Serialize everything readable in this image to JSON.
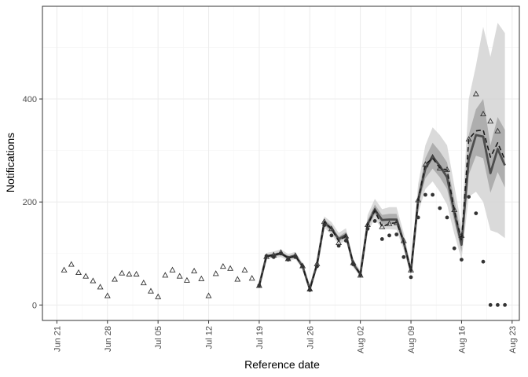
{
  "chart_data": {
    "type": "line",
    "title": "",
    "xlabel": "Reference date",
    "ylabel": "Notifications",
    "x_ticks": [
      "Jun 21",
      "Jun 28",
      "Jul 05",
      "Jul 12",
      "Jul 19",
      "Jul 26",
      "Aug 02",
      "Aug 09",
      "Aug 16",
      "Aug 23"
    ],
    "y_ticks": [
      "0",
      "200",
      "400"
    ],
    "xlim": [
      "2020-06-19",
      "2020-08-24"
    ],
    "ylim": [
      -30,
      580
    ],
    "grid": true,
    "theme": "black-and-white",
    "colors": {
      "background": "#ffffff",
      "panel_border": "#333333",
      "grid_major": "#ebebeb",
      "grid_minor": "#f5f5f5",
      "ribbon_outer": "#d3d3d3",
      "ribbon_inner": "#a6a6a6",
      "median_line": "#4d4d4d",
      "dashed_line": "#1a1a1a",
      "points": "#333333"
    },
    "series": [
      {
        "kind": "triangles",
        "dates": [
          "2020-06-22",
          "2020-06-23",
          "2020-06-24",
          "2020-06-25",
          "2020-06-26",
          "2020-06-27",
          "2020-06-28",
          "2020-06-29",
          "2020-06-30",
          "2020-07-01",
          "2020-07-02",
          "2020-07-03",
          "2020-07-04",
          "2020-07-05",
          "2020-07-06",
          "2020-07-07",
          "2020-07-08",
          "2020-07-09",
          "2020-07-10",
          "2020-07-11",
          "2020-07-12",
          "2020-07-13",
          "2020-07-14",
          "2020-07-15",
          "2020-07-16",
          "2020-07-17",
          "2020-07-18",
          "2020-07-19",
          "2020-07-20",
          "2020-07-21",
          "2020-07-22",
          "2020-07-23",
          "2020-07-24",
          "2020-07-25",
          "2020-07-26",
          "2020-07-27",
          "2020-07-28",
          "2020-07-29",
          "2020-07-30",
          "2020-07-31",
          "2020-08-01",
          "2020-08-02",
          "2020-08-03",
          "2020-08-04",
          "2020-08-05",
          "2020-08-06",
          "2020-08-07",
          "2020-08-08",
          "2020-08-09",
          "2020-08-10",
          "2020-08-11",
          "2020-08-12",
          "2020-08-13",
          "2020-08-14",
          "2020-08-15",
          "2020-08-16",
          "2020-08-17",
          "2020-08-18",
          "2020-08-19",
          "2020-08-20",
          "2020-08-21"
        ],
        "values": [
          68,
          79,
          63,
          56,
          47,
          35,
          18,
          50,
          62,
          60,
          60,
          43,
          27,
          16,
          58,
          68,
          56,
          48,
          66,
          51,
          18,
          61,
          75,
          71,
          50,
          68,
          52,
          38,
          94,
          97,
          102,
          90,
          96,
          76,
          31,
          80,
          162,
          148,
          121,
          134,
          82,
          58,
          156,
          183,
          152,
          158,
          160,
          125,
          68,
          204,
          273,
          287,
          266,
          263,
          185,
          135,
          322,
          410,
          371,
          357,
          338
        ]
      },
      {
        "kind": "dots",
        "dates": [
          "2020-07-19",
          "2020-07-20",
          "2020-07-21",
          "2020-07-22",
          "2020-07-23",
          "2020-07-24",
          "2020-07-25",
          "2020-07-26",
          "2020-07-27",
          "2020-07-28",
          "2020-07-29",
          "2020-07-30",
          "2020-07-31",
          "2020-08-01",
          "2020-08-02",
          "2020-08-03",
          "2020-08-04",
          "2020-08-05",
          "2020-08-06",
          "2020-08-07",
          "2020-08-08",
          "2020-08-09",
          "2020-08-10",
          "2020-08-11",
          "2020-08-12",
          "2020-08-13",
          "2020-08-14",
          "2020-08-15",
          "2020-08-16",
          "2020-08-17",
          "2020-08-18",
          "2020-08-19",
          "2020-08-20",
          "2020-08-21",
          "2020-08-22"
        ],
        "values": [
          38,
          95,
          93,
          100,
          88,
          93,
          75,
          29,
          75,
          155,
          135,
          115,
          125,
          79,
          58,
          148,
          163,
          128,
          135,
          137,
          93,
          54,
          170,
          214,
          214,
          188,
          170,
          110,
          88,
          210,
          178,
          84,
          0,
          0,
          0
        ]
      },
      {
        "kind": "median-line",
        "dates": [
          "2020-07-19",
          "2020-07-20",
          "2020-07-21",
          "2020-07-22",
          "2020-07-23",
          "2020-07-24",
          "2020-07-25",
          "2020-07-26",
          "2020-07-27",
          "2020-07-28",
          "2020-07-29",
          "2020-07-30",
          "2020-07-31",
          "2020-08-01",
          "2020-08-02",
          "2020-08-03",
          "2020-08-04",
          "2020-08-05",
          "2020-08-06",
          "2020-08-07",
          "2020-08-08",
          "2020-08-09",
          "2020-08-10",
          "2020-08-11",
          "2020-08-12",
          "2020-08-13",
          "2020-08-14",
          "2020-08-15",
          "2020-08-16",
          "2020-08-17",
          "2020-08-18",
          "2020-08-19",
          "2020-08-20",
          "2020-08-21",
          "2020-08-22"
        ],
        "values": [
          38,
          95,
          97,
          100,
          92,
          96,
          75,
          31,
          79,
          160,
          148,
          128,
          136,
          80,
          60,
          157,
          185,
          165,
          166,
          166,
          122,
          65,
          204,
          265,
          288,
          270,
          248,
          180,
          117,
          283,
          330,
          327,
          256,
          303,
          271
        ],
        "lower_outer": [
          36,
          90,
          91,
          93,
          86,
          89,
          70,
          28,
          72,
          150,
          137,
          118,
          125,
          73,
          55,
          142,
          167,
          147,
          147,
          146,
          107,
          57,
          178,
          225,
          240,
          220,
          195,
          138,
          88,
          210,
          220,
          200,
          145,
          140,
          130
        ],
        "upper_outer": [
          40,
          101,
          104,
          108,
          99,
          103,
          82,
          35,
          87,
          172,
          161,
          140,
          149,
          89,
          67,
          175,
          206,
          186,
          190,
          190,
          140,
          75,
          235,
          310,
          345,
          330,
          310,
          232,
          153,
          400,
          465,
          540,
          482,
          548,
          528
        ],
        "lower_inner": [
          37,
          93,
          94,
          97,
          89,
          93,
          73,
          30,
          76,
          155,
          143,
          123,
          131,
          77,
          58,
          150,
          176,
          157,
          157,
          157,
          115,
          61,
          192,
          246,
          265,
          248,
          225,
          162,
          103,
          253,
          290,
          285,
          218,
          258,
          228
        ],
        "upper_inner": [
          39,
          97,
          100,
          104,
          95,
          99,
          78,
          33,
          83,
          166,
          154,
          133,
          142,
          84,
          63,
          165,
          195,
          175,
          177,
          177,
          130,
          70,
          218,
          285,
          315,
          298,
          277,
          205,
          135,
          330,
          380,
          400,
          310,
          365,
          340
        ]
      },
      {
        "kind": "dashed-line",
        "dates": [
          "2020-07-19",
          "2020-07-20",
          "2020-07-21",
          "2020-07-22",
          "2020-07-23",
          "2020-07-24",
          "2020-07-25",
          "2020-07-26",
          "2020-07-27",
          "2020-07-28",
          "2020-07-29",
          "2020-07-30",
          "2020-07-31",
          "2020-08-01",
          "2020-08-02",
          "2020-08-03",
          "2020-08-04",
          "2020-08-05",
          "2020-08-06",
          "2020-08-07",
          "2020-08-08",
          "2020-08-09",
          "2020-08-10",
          "2020-08-11",
          "2020-08-12",
          "2020-08-13",
          "2020-08-14",
          "2020-08-15",
          "2020-08-16",
          "2020-08-17",
          "2020-08-18",
          "2020-08-19",
          "2020-08-20",
          "2020-08-21",
          "2020-08-22"
        ],
        "values": [
          38,
          94,
          97,
          101,
          91,
          95,
          75,
          30,
          79,
          162,
          148,
          124,
          134,
          82,
          58,
          156,
          183,
          152,
          158,
          160,
          123,
          66,
          204,
          273,
          285,
          266,
          262,
          185,
          125,
          322,
          338,
          340,
          287,
          315,
          282
        ]
      }
    ]
  }
}
